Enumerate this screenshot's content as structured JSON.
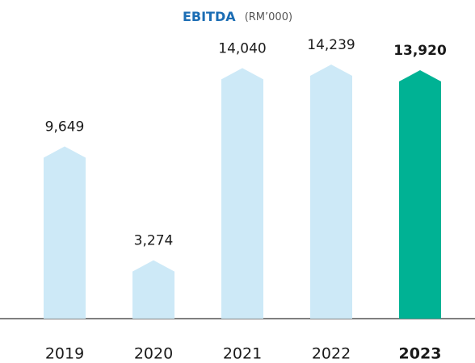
{
  "chart_data": {
    "type": "bar",
    "title": "EBITDA",
    "subtitle": "(RM’000)",
    "categories": [
      "2019",
      "2020",
      "2021",
      "2022",
      "2023"
    ],
    "values": [
      9649,
      3274,
      14040,
      14239,
      13920
    ],
    "value_labels": [
      "9,649",
      "3,274",
      "14,040",
      "14,239",
      "13,920"
    ],
    "colors": [
      "#cde9f7",
      "#cde9f7",
      "#cde9f7",
      "#cde9f7",
      "#00b294"
    ]
  }
}
